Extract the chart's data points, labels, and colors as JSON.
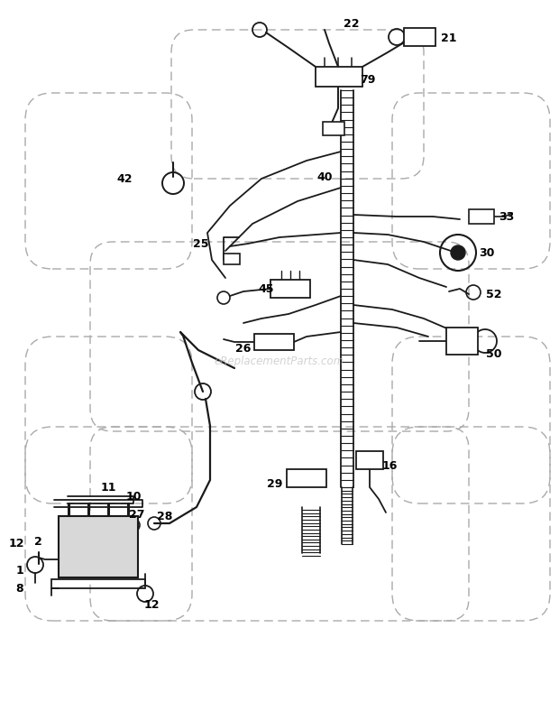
{
  "bg_color": "#ffffff",
  "line_color": "#1a1a1a",
  "dash_color": "#aaaaaa",
  "watermark": "eReplacementParts.com",
  "figsize": [
    6.2,
    7.88
  ],
  "dpi": 100
}
